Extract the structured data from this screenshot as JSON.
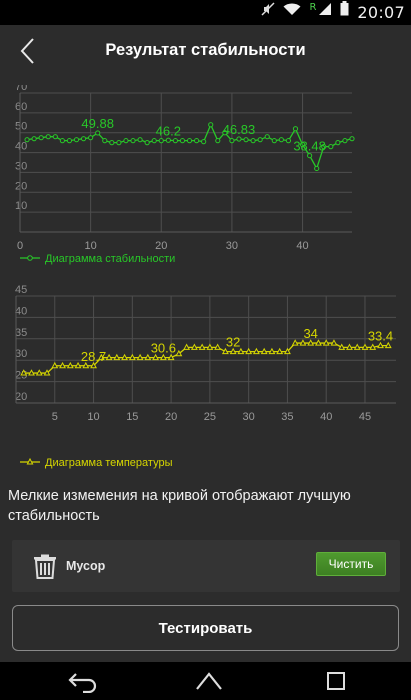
{
  "status_bar": {
    "time": "20:07",
    "network_label": "R",
    "icons": [
      "mute-icon",
      "wifi-icon",
      "signal-icon",
      "battery-icon"
    ]
  },
  "header": {
    "title": "Результат стабильности",
    "back_icon": "chevron-left-icon"
  },
  "charts": {
    "stability": {
      "legend": "Диаграмма стабильности",
      "color": "#28c828"
    },
    "temperature": {
      "legend": "Диаграмма температуры",
      "color": "#d6d600"
    }
  },
  "chart_data": [
    {
      "type": "line",
      "xlim": [
        0,
        47
      ],
      "ylim": [
        0,
        70
      ],
      "x_ticks": [
        0,
        10,
        20,
        30,
        40
      ],
      "y_ticks": [
        10,
        20,
        30,
        40,
        50,
        60,
        70
      ],
      "grid": true,
      "legend_position": "bottom-left",
      "series": [
        {
          "name": "Диаграмма стабильности",
          "x": [
            1,
            2,
            3,
            4,
            5,
            6,
            7,
            8,
            9,
            10,
            11,
            12,
            13,
            14,
            15,
            16,
            17,
            18,
            19,
            20,
            21,
            22,
            23,
            24,
            25,
            26,
            27,
            28,
            29,
            30,
            31,
            32,
            33,
            34,
            35,
            36,
            37,
            38,
            39,
            40,
            41,
            42,
            43,
            44,
            45,
            46,
            47
          ],
          "y": [
            46.5,
            47,
            47.5,
            48,
            48,
            46,
            46,
            46.5,
            47,
            47.5,
            49.88,
            46,
            45,
            45,
            46,
            46,
            46.5,
            45,
            46,
            46,
            46.2,
            46,
            46,
            46,
            46,
            45.5,
            54,
            46,
            50,
            46,
            46.83,
            46.5,
            46,
            46.5,
            48,
            46,
            46.5,
            46,
            52,
            44,
            38.48,
            32,
            43,
            43,
            45,
            46,
            47
          ],
          "data_labels": [
            {
              "x": 11,
              "label": "49.88"
            },
            {
              "x": 21,
              "label": "46.2"
            },
            {
              "x": 31,
              "label": "46.83"
            },
            {
              "x": 41,
              "label": "38.48"
            }
          ]
        }
      ]
    },
    {
      "type": "line",
      "xlim": [
        0,
        49
      ],
      "ylim": [
        20,
        45
      ],
      "x_ticks": [
        5,
        10,
        15,
        20,
        25,
        30,
        35,
        40,
        45
      ],
      "y_ticks": [
        20,
        25,
        30,
        35,
        40,
        45
      ],
      "grid": true,
      "legend_position": "bottom-left",
      "series": [
        {
          "name": "Диаграмма температуры",
          "x": [
            1,
            2,
            3,
            4,
            5,
            6,
            7,
            8,
            9,
            10,
            11,
            12,
            13,
            14,
            15,
            16,
            17,
            18,
            19,
            20,
            21,
            22,
            23,
            24,
            25,
            26,
            27,
            28,
            29,
            30,
            31,
            32,
            33,
            34,
            35,
            36,
            37,
            38,
            39,
            40,
            41,
            42,
            43,
            44,
            45,
            46,
            47,
            48
          ],
          "y": [
            27,
            27,
            27,
            27,
            28.7,
            28.7,
            28.7,
            28.7,
            28.7,
            28.7,
            30.6,
            30.6,
            30.6,
            30.6,
            30.6,
            30.6,
            30.6,
            30.6,
            30.6,
            30.6,
            31.5,
            33,
            33,
            33,
            33,
            33,
            32,
            32,
            32,
            32,
            32,
            32,
            32,
            32,
            32,
            34,
            34,
            34,
            34,
            34,
            34,
            33,
            33,
            33,
            33,
            33,
            33.4,
            33.4
          ],
          "data_labels": [
            {
              "x": 10,
              "label": "28.7"
            },
            {
              "x": 19,
              "label": "30.6"
            },
            {
              "x": 28,
              "label": "32"
            },
            {
              "x": 38,
              "label": "34"
            },
            {
              "x": 47,
              "label": "33.4"
            }
          ]
        }
      ]
    }
  ],
  "info_text": "Мелкие измемения на кривой отображают лучшую стабильность",
  "trash": {
    "icon": "trash-icon",
    "label": "Мусор",
    "button": "Чистить"
  },
  "test_button": "Тестировать",
  "nav_bar": {
    "icons": [
      "back-arrow-icon",
      "home-icon",
      "recent-apps-icon"
    ]
  }
}
